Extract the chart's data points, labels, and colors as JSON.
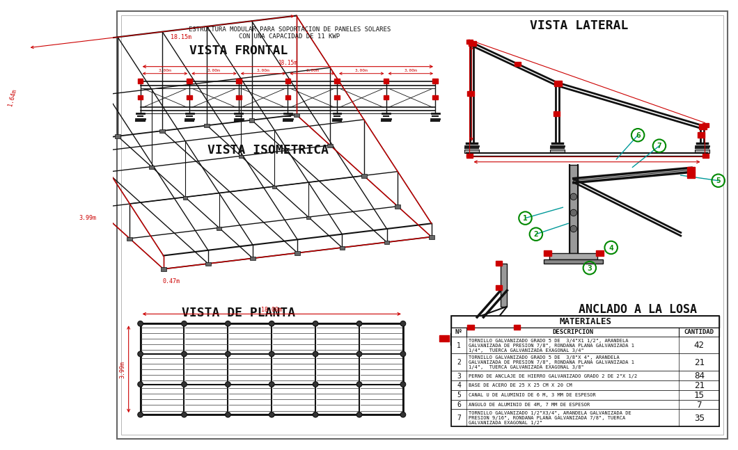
{
  "title_main": "ESTRUCTURA MODULAR PARA SOPORTACION DE PANELES SOLARES",
  "title_sub": "CON UNA CAPACIDAD DE 11 KWP",
  "view_frontal": "VISTA FRONTAL",
  "view_lateral": "VISTA LATERAL",
  "view_isometrica": "VISTA ISOMETRICA",
  "view_planta": "VISTA DE PLANTA",
  "anclado_label": "ANCLADO A LA LOSA",
  "materiales_title": "MATERIALES",
  "col_no": "Nº",
  "col_desc": "DESCRIPCION",
  "col_cant": "CANTIDAD",
  "lc": "#111111",
  "rc": "#cc0000",
  "cc": "#009999",
  "gc": "#008800",
  "span_labels": [
    "3.00m",
    "3.00m",
    "3.00m",
    "3.00m",
    "3.00m",
    "3.00m"
  ],
  "total_span": "18.15m",
  "dim_depth": "3.99m",
  "dim_height": "1.64m",
  "dim_width_iso": "18.15m",
  "dim_foot": "0.47m",
  "dim_planta_w": "18.00m",
  "dim_planta_h": "3.99m",
  "materials": [
    {
      "no": "1",
      "desc": "TORNILLO GALVANIZADO GRADO 5 DE  3/4\"X1 1/2\", ARANDELA\nGALVANIZADA DE PRESION 7/8\", RONDANA PLANA GALVANIZADA 1\n1/4\",  TUERCA GALVANIZADA EXAGONAL 3/4\"",
      "cant": "42",
      "rh": 32
    },
    {
      "no": "2",
      "desc": "TORNILLO GALVANIZADO GRADO 5 DE  3/8\"X 4\", ARANDELA\nGALVANIZADA DE PRESION 7/8\", RONDANA PLANA GALVANIZADA 1\n1/4\",  TUERCA GALVANIZADA EXAGONAL 3/8\"",
      "cant": "21",
      "rh": 32
    },
    {
      "no": "3",
      "desc": "PERNO DE ANCLAJE DE HIERRO GALVANIZADO GRADO 2 DE 2\"X 1/2",
      "cant": "84",
      "rh": 18
    },
    {
      "no": "4",
      "desc": "BASE DE ACERO DE 25 X 25 CM X 20 CM",
      "cant": "21",
      "rh": 18
    },
    {
      "no": "5",
      "desc": "CANAL U DE ALUMINIO DE 6 M, 3 MM DE ESPESOR",
      "cant": "15",
      "rh": 18
    },
    {
      "no": "6",
      "desc": "ANGULO DE ALUMINIO DE 4M, 7 MM DE ESPESOR",
      "cant": "7",
      "rh": 18
    },
    {
      "no": "7",
      "desc": "TORNILLO GALVANIZADO 1/2\"X3/4\", ARANDELA GALVANIZADA DE\nPRESION 9/16\", RONDANA PLANA GALVANIZADA 7/8\", TUERCA\nGALVANIZADA EXAGONAL 1/2\"",
      "cant": "35",
      "rh": 32
    }
  ]
}
